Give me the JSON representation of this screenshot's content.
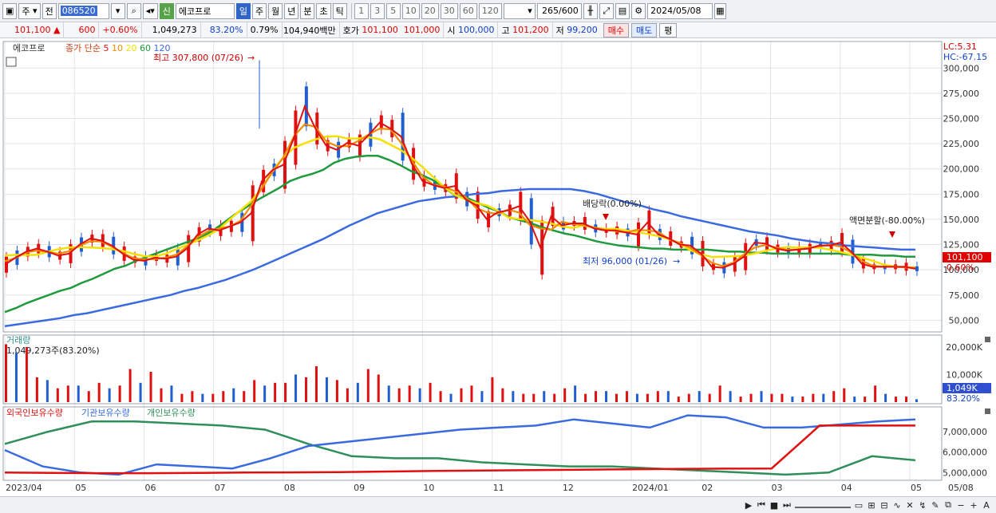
{
  "toolbar": {
    "period_select": "주",
    "prev_label": "전",
    "stock_code": "086520",
    "badge": "신",
    "stock_name": "에코프로",
    "tabs": [
      "일",
      "주",
      "월",
      "년",
      "분",
      "초",
      "틱"
    ],
    "active_tab": "일",
    "intervals": [
      "1",
      "3",
      "5",
      "10",
      "20",
      "30",
      "60",
      "120"
    ],
    "count": "265",
    "count_total": "/600",
    "date": "2024/05/08"
  },
  "quote": {
    "price": "101,100",
    "arrow": "▲",
    "change": "600",
    "change_pct": "+0.60%",
    "volume": "1,049,273",
    "vol_ratio": "83.20%",
    "turnover": "0.79%",
    "amount": "104,940백만",
    "hoga_label": "호가",
    "bid1": "101,100",
    "bid2": "101,000",
    "open_label": "시",
    "open": "100,000",
    "high_label": "고",
    "high": "101,200",
    "low_label": "저",
    "low": "99,200",
    "buy_label": "매수",
    "sell_label": "매도",
    "eval_label": "평"
  },
  "price_panel": {
    "title": "에코프로",
    "legend_prefix": "종가 단순",
    "ma_labels": [
      {
        "label": "5",
        "color": "#e01010"
      },
      {
        "label": "10",
        "color": "#f08c00"
      },
      {
        "label": "20",
        "color": "#f5e000"
      },
      {
        "label": "60",
        "color": "#1f9a3c"
      },
      {
        "label": "120",
        "color": "#3a6ae0"
      }
    ],
    "lc": "LC:5.31",
    "hc": "HC:-67.15",
    "high_annot": "최고 307,800 (07/26)",
    "low_annot": "최저 96,000 (01/26)",
    "dividend_annot": "배당락(0.00%)",
    "split_annot": "액면분할(-80.00%)",
    "last_price_tag": "101,100",
    "last_pct_tag": "0.60%",
    "y_ticks": [
      "300,000",
      "275,000",
      "250,000",
      "225,000",
      "200,000",
      "175,000",
      "150,000",
      "125,000",
      "100,000",
      "75,000",
      "50,000"
    ]
  },
  "volume_panel": {
    "title": "거래량",
    "info": "1,049,273주(83.20%)",
    "y_ticks": [
      "20,000K",
      "10,000K"
    ],
    "last_tag": "1,049K",
    "last_pct": "83.20%"
  },
  "holding_panel": {
    "legend": [
      {
        "label": "외국인보유수량",
        "color": "#e01010"
      },
      {
        "label": "기관보유수량",
        "color": "#3a6ae0"
      },
      {
        "label": "개인보유수량",
        "color": "#2f8f5a"
      }
    ],
    "y_ticks": [
      "7,000,000",
      "6,000,000",
      "5,000,000"
    ]
  },
  "x_axis": {
    "labels": [
      "2023/04",
      "05",
      "06",
      "07",
      "08",
      "09",
      "10",
      "11",
      "12",
      "2024/01",
      "02",
      "03",
      "04",
      "05",
      "05/08"
    ]
  },
  "chart_data": {
    "type": "candlestick",
    "title": "에코프로",
    "y_range": [
      40000,
      320000
    ],
    "ma_5": [
      105000,
      112000,
      118000,
      121000,
      118000,
      114000,
      116000,
      125000,
      131000,
      129000,
      124000,
      116000,
      110000,
      109000,
      112000,
      111000,
      113000,
      121000,
      135000,
      141000,
      139000,
      143000,
      147000,
      156000,
      188000,
      199000,
      204000,
      231000,
      262000,
      240000,
      223000,
      219000,
      226000,
      223000,
      234000,
      246000,
      240000,
      232000,
      205000,
      188000,
      184000,
      181000,
      183000,
      170000,
      164000,
      150000,
      157000,
      159000,
      163000,
      148000,
      122000,
      153000,
      144000,
      146000,
      146000,
      141000,
      139000,
      139000,
      137000,
      135000,
      147000,
      135000,
      131000,
      125000,
      124000,
      116000,
      103000,
      102000,
      106000,
      113000,
      127000,
      126000,
      121000,
      119000,
      120000,
      121000,
      124000,
      124000,
      127000,
      118000,
      106000,
      103000,
      103000,
      103000,
      103000,
      101000
    ],
    "ma_60": [
      58000,
      62000,
      67000,
      71000,
      75000,
      79000,
      82000,
      87000,
      91000,
      96000,
      101000,
      104000,
      109000,
      113000,
      117000,
      121000,
      125000,
      129000,
      133000,
      139000,
      147000,
      155000,
      162000,
      169000,
      175000,
      181000,
      188000,
      192000,
      195000,
      199000,
      206000,
      210000,
      212000,
      213000,
      213000,
      209000,
      204000,
      198000,
      194000,
      189000,
      182000,
      174000,
      172000,
      167000,
      162000,
      158000,
      152000,
      149000,
      146000,
      142000,
      139000,
      136000,
      134000,
      131000,
      128000,
      126000,
      124000,
      123000,
      122000,
      121000,
      121000,
      120000,
      120000,
      120000,
      120000,
      119000,
      118000,
      118000,
      117000,
      117000,
      116000,
      116000,
      116000,
      116000,
      116000,
      116000,
      116000,
      115000,
      115000,
      115000,
      114000,
      114000,
      113000,
      113000
    ],
    "ma_120": [
      44000,
      46000,
      48000,
      50000,
      52000,
      55000,
      57000,
      60000,
      63000,
      66000,
      69000,
      72000,
      75000,
      79000,
      82000,
      86000,
      90000,
      95000,
      100000,
      106000,
      112000,
      118000,
      124000,
      130000,
      137000,
      144000,
      150000,
      156000,
      160000,
      164000,
      168000,
      170000,
      172000,
      173000,
      175000,
      176000,
      178000,
      179000,
      180000,
      180000,
      180000,
      180000,
      178000,
      175000,
      171000,
      167000,
      164000,
      160000,
      157000,
      153000,
      150000,
      147000,
      144000,
      141000,
      138000,
      136000,
      134000,
      131000,
      129000,
      127000,
      126000,
      124000,
      123000,
      122000,
      121000,
      120000,
      120000
    ],
    "volume_k": [
      21000,
      18000,
      20000,
      9000,
      8000,
      5000,
      6000,
      6000,
      4000,
      7000,
      5000,
      6000,
      12000,
      7000,
      11000,
      5000,
      6000,
      3000,
      4000,
      3000,
      3000,
      4000,
      5000,
      4000,
      8000,
      6000,
      7000,
      7000,
      10000,
      9000,
      13000,
      9000,
      8000,
      5000,
      7000,
      12000,
      10000,
      6000,
      5000,
      6000,
      5000,
      7000,
      4000,
      3000,
      5000,
      6000,
      4000,
      9000,
      5000,
      4000,
      3000,
      3000,
      4000,
      3000,
      5000,
      6000,
      3000,
      4000,
      4000,
      3000,
      4000,
      3000,
      3000,
      4000,
      4000,
      2000,
      3000,
      4000,
      3000,
      6000,
      4000,
      2000,
      3000,
      4000,
      3000,
      3000,
      2000,
      2000,
      3000,
      3000,
      4000,
      5000,
      2000,
      2000,
      6000,
      3000,
      2000,
      2000,
      1049
    ],
    "foreign_holding": [
      5000000,
      4980000,
      4970000,
      4970000,
      4980000,
      5000000,
      5010000,
      5020000,
      5050000,
      5080000,
      5100000,
      5120000,
      5140000,
      5160000,
      5180000,
      5190000,
      5200000,
      7300000,
      7300000,
      7300000
    ],
    "institution_holding": [
      6100000,
      5300000,
      5000000,
      4900000,
      5400000,
      5300000,
      5200000,
      5700000,
      6300000,
      6500000,
      6700000,
      6900000,
      7100000,
      7200000,
      7300000,
      7600000,
      7400000,
      7200000,
      7800000,
      7700000,
      7200000,
      7200000,
      7350000,
      7500000,
      7600000
    ],
    "individual_holding": [
      6400000,
      7000000,
      7500000,
      7500000,
      7400000,
      7300000,
      7100000,
      6400000,
      5800000,
      5700000,
      5700000,
      5500000,
      5400000,
      5300000,
      5300000,
      5200000,
      5100000,
      5000000,
      4900000,
      5000000,
      5800000,
      5600000
    ]
  }
}
